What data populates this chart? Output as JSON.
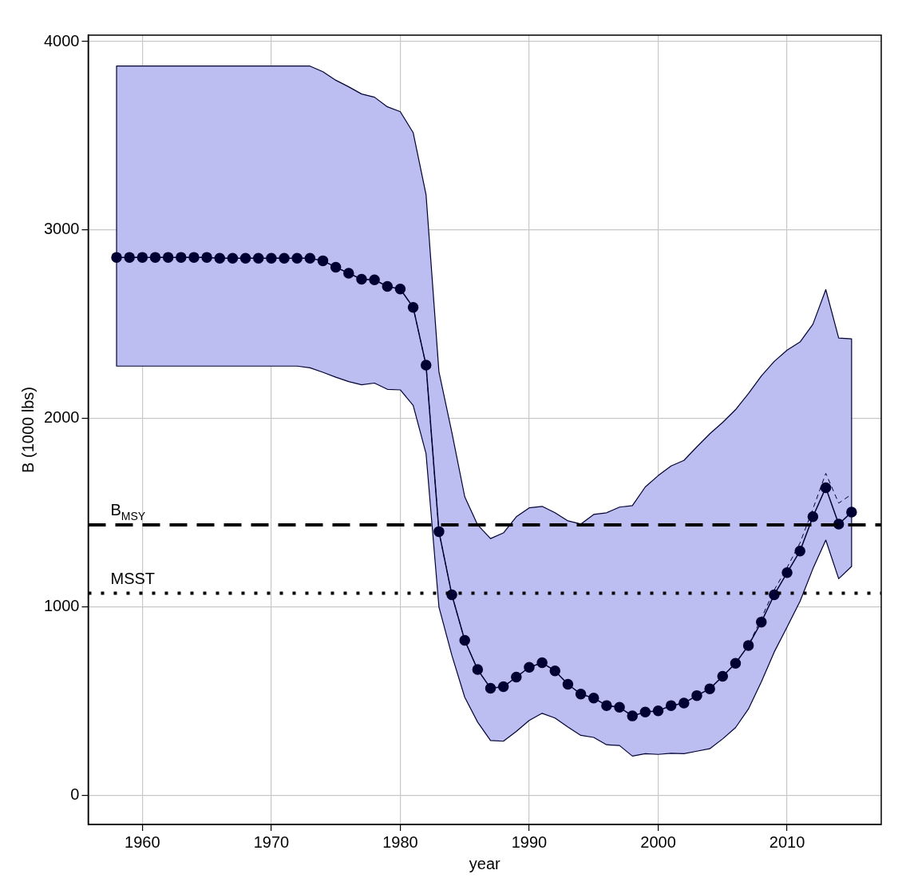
{
  "chart_data": {
    "type": "line",
    "xlabel": "year",
    "ylabel": "B (1000 lbs)",
    "x": [
      1958,
      1959,
      1960,
      1961,
      1962,
      1963,
      1964,
      1965,
      1966,
      1967,
      1968,
      1969,
      1970,
      1971,
      1972,
      1973,
      1974,
      1975,
      1976,
      1977,
      1978,
      1979,
      1980,
      1981,
      1982,
      1983,
      1984,
      1985,
      1986,
      1987,
      1988,
      1989,
      1990,
      1991,
      1992,
      1993,
      1994,
      1995,
      1996,
      1997,
      1998,
      1999,
      2000,
      2001,
      2002,
      2003,
      2004,
      2005,
      2006,
      2007,
      2008,
      2009,
      2010,
      2011,
      2012,
      2013,
      2014,
      2015
    ],
    "series": [
      {
        "color": "#000033",
        "marker": "circle",
        "line_style": "solid",
        "values": [
          2855,
          2855,
          2855,
          2855,
          2855,
          2855,
          2855,
          2855,
          2850,
          2850,
          2850,
          2850,
          2850,
          2850,
          2850,
          2850,
          2837,
          2803,
          2771,
          2739,
          2736,
          2701,
          2687,
          2590,
          2283,
          1400,
          1065,
          823,
          668,
          569,
          577,
          628,
          680,
          704,
          661,
          590,
          538,
          517,
          477,
          468,
          422,
          443,
          449,
          477,
          490,
          530,
          566,
          632,
          701,
          796,
          920,
          1065,
          1182,
          1297,
          1479,
          1633,
          1440,
          1503
        ],
        "lower": [
          2278,
          2278,
          2278,
          2278,
          2278,
          2278,
          2278,
          2278,
          2278,
          2278,
          2278,
          2278,
          2278,
          2278,
          2278,
          2269,
          2245,
          2219,
          2196,
          2179,
          2188,
          2155,
          2152,
          2070,
          1813,
          1000,
          744,
          521,
          389,
          292,
          288,
          340,
          398,
          436,
          411,
          363,
          319,
          308,
          269,
          265,
          209,
          222,
          218,
          224,
          222,
          235,
          248,
          300,
          360,
          459,
          603,
          761,
          894,
          1030,
          1203,
          1355,
          1150,
          1215
        ],
        "upper": [
          3870,
          3870,
          3870,
          3870,
          3870,
          3870,
          3870,
          3870,
          3870,
          3870,
          3870,
          3870,
          3870,
          3870,
          3870,
          3870,
          3840,
          3795,
          3760,
          3722,
          3705,
          3654,
          3628,
          3517,
          3188,
          2248,
          1927,
          1585,
          1436,
          1363,
          1393,
          1479,
          1526,
          1534,
          1500,
          1457,
          1440,
          1491,
          1500,
          1530,
          1538,
          1637,
          1697,
          1748,
          1778,
          1850,
          1919,
          1979,
          2047,
          2132,
          2226,
          2303,
          2363,
          2406,
          2500,
          2684,
          2427,
          2423
        ]
      },
      {
        "color": "#000033",
        "marker": "none",
        "line_style": "dashed",
        "values": [
          2855,
          2855,
          2855,
          2855,
          2855,
          2855,
          2855,
          2855,
          2850,
          2850,
          2850,
          2850,
          2850,
          2850,
          2850,
          2850,
          2837,
          2803,
          2771,
          2739,
          2736,
          2701,
          2687,
          2590,
          2283,
          1400,
          1065,
          823,
          668,
          569,
          577,
          628,
          680,
          704,
          661,
          590,
          538,
          517,
          477,
          468,
          422,
          443,
          449,
          477,
          490,
          530,
          566,
          632,
          701,
          796,
          940,
          1090,
          1210,
          1340,
          1520,
          1709,
          1551,
          1598
        ]
      }
    ],
    "xlim": [
      1955.8,
      2017.3
    ],
    "xticks": [
      1960,
      1970,
      1980,
      1990,
      2000,
      2010
    ],
    "ylim": [
      -154,
      4034
    ],
    "yticks": [
      0,
      1000,
      2000,
      3000,
      4000
    ],
    "grid": true,
    "legend": false,
    "ref_lines": [
      {
        "axis": "y",
        "value": 1436,
        "label": "B$_{MSY}$",
        "line_style": "dashed",
        "color": "#000000"
      },
      {
        "axis": "y",
        "value": 1073,
        "label": "MSST",
        "line_style": "dotted",
        "color": "#000000"
      }
    ]
  }
}
